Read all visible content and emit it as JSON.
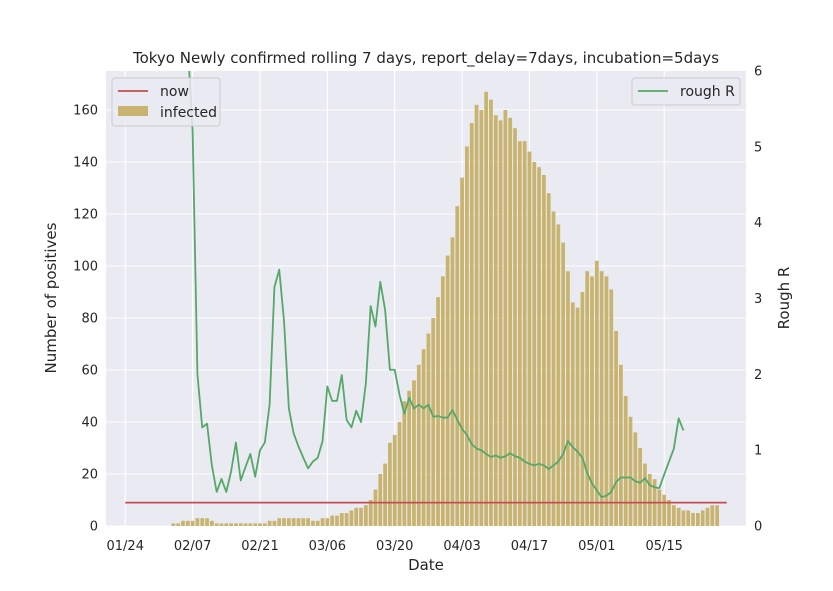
{
  "chart_data": {
    "type": "bar",
    "title": "Tokyo Newly confirmed rolling 7 days, report_delay=7days, incubation=5days",
    "xlabel": "Date",
    "ylabel": "Number of positives",
    "y2label": "Rough R",
    "ylim": [
      0,
      175
    ],
    "y2lim": [
      0,
      6
    ],
    "yticks": [
      0,
      20,
      40,
      60,
      80,
      100,
      120,
      140,
      160
    ],
    "y2ticks": [
      0,
      1,
      2,
      3,
      4,
      5,
      6
    ],
    "xrange_days": [
      -4,
      129
    ],
    "xticks": [
      {
        "day": 0,
        "label": "01/24"
      },
      {
        "day": 14,
        "label": "02/07"
      },
      {
        "day": 28,
        "label": "02/21"
      },
      {
        "day": 42,
        "label": "03/06"
      },
      {
        "day": 56,
        "label": "03/20"
      },
      {
        "day": 70,
        "label": "04/03"
      },
      {
        "day": 84,
        "label": "04/17"
      },
      {
        "day": 98,
        "label": "05/01"
      },
      {
        "day": 112,
        "label": "05/15"
      }
    ],
    "grid": true,
    "legend_left_position": "top-left",
    "legend_right_position": "top-right",
    "series": [
      {
        "name": "infected",
        "kind": "bar",
        "axis": "left",
        "color": "#c8b46e",
        "start_day": 0,
        "values": [
          0,
          0,
          0,
          0,
          0,
          0,
          0,
          0,
          0,
          0,
          1,
          1,
          2,
          2,
          2,
          3,
          3,
          3,
          2,
          1,
          1,
          1,
          1,
          1,
          1,
          1,
          1,
          1,
          1,
          1,
          2,
          2,
          3,
          3,
          3,
          3,
          3,
          3,
          3,
          2,
          2,
          3,
          3,
          4,
          4,
          5,
          5,
          6,
          7,
          7,
          8,
          10,
          14,
          20,
          24,
          32,
          35,
          40,
          48,
          52,
          56,
          62,
          68,
          74,
          80,
          88,
          96,
          104,
          111,
          123,
          134,
          146,
          155,
          162,
          160,
          167,
          164,
          158,
          156,
          160,
          157,
          153,
          148,
          148,
          144,
          140,
          138,
          135,
          128,
          121,
          116,
          109,
          98,
          86,
          84,
          90,
          98,
          96,
          102,
          98,
          96,
          91,
          75,
          62,
          50,
          42,
          36,
          30,
          24,
          20,
          18,
          14,
          12,
          10,
          8,
          7,
          6,
          6,
          5,
          5,
          6,
          7,
          8,
          8
        ]
      },
      {
        "name": "now",
        "kind": "hline",
        "axis": "left",
        "color": "#c44e52",
        "value": 9,
        "start_day": 0,
        "end_day": 125
      },
      {
        "name": "rough R",
        "kind": "line",
        "axis": "right",
        "color": "#55a868",
        "points": [
          [
            13.3,
            6
          ],
          [
            14,
            5.2
          ],
          [
            15,
            2
          ],
          [
            16,
            1.3
          ],
          [
            17,
            1.35
          ],
          [
            18,
            0.8
          ],
          [
            19,
            0.45
          ],
          [
            20,
            0.62
          ],
          [
            21,
            0.45
          ],
          [
            22,
            0.72
          ],
          [
            23,
            1.1
          ],
          [
            24,
            0.6
          ],
          [
            25,
            0.78
          ],
          [
            26,
            0.95
          ],
          [
            27,
            0.65
          ],
          [
            28,
            1
          ],
          [
            29,
            1.1
          ],
          [
            30,
            1.6
          ],
          [
            31,
            3.15
          ],
          [
            32,
            3.38
          ],
          [
            33,
            2.7
          ],
          [
            34,
            1.55
          ],
          [
            35,
            1.22
          ],
          [
            36,
            1.05
          ],
          [
            37,
            0.9
          ],
          [
            38,
            0.76
          ],
          [
            39,
            0.85
          ],
          [
            40,
            0.9
          ],
          [
            41,
            1.12
          ],
          [
            42,
            1.84
          ],
          [
            43,
            1.65
          ],
          [
            44,
            1.65
          ],
          [
            45,
            1.99
          ],
          [
            46,
            1.4
          ],
          [
            47,
            1.3
          ],
          [
            48,
            1.52
          ],
          [
            49,
            1.37
          ],
          [
            50,
            1.88
          ],
          [
            51,
            2.9
          ],
          [
            52,
            2.63
          ],
          [
            53,
            3.22
          ],
          [
            54,
            2.85
          ],
          [
            55,
            2.06
          ],
          [
            56,
            2.06
          ],
          [
            57,
            1.73
          ],
          [
            58,
            1.48
          ],
          [
            59,
            1.69
          ],
          [
            60,
            1.55
          ],
          [
            61,
            1.6
          ],
          [
            62,
            1.55
          ],
          [
            63,
            1.6
          ],
          [
            64,
            1.44
          ],
          [
            65,
            1.45
          ],
          [
            66,
            1.43
          ],
          [
            67,
            1.43
          ],
          [
            68,
            1.53
          ],
          [
            69,
            1.4
          ],
          [
            70,
            1.28
          ],
          [
            71,
            1.2
          ],
          [
            72,
            1.08
          ],
          [
            73,
            1.02
          ],
          [
            74,
            1.0
          ],
          [
            75,
            0.95
          ],
          [
            76,
            0.91
          ],
          [
            77,
            0.93
          ],
          [
            78,
            0.9
          ],
          [
            79,
            0.92
          ],
          [
            80,
            0.96
          ],
          [
            81,
            0.92
          ],
          [
            82,
            0.9
          ],
          [
            83,
            0.85
          ],
          [
            84,
            0.82
          ],
          [
            85,
            0.8
          ],
          [
            86,
            0.82
          ],
          [
            87,
            0.8
          ],
          [
            88,
            0.75
          ],
          [
            89,
            0.8
          ],
          [
            90,
            0.85
          ],
          [
            91,
            0.95
          ],
          [
            92,
            1.12
          ],
          [
            93,
            1.04
          ],
          [
            94,
            0.98
          ],
          [
            95,
            0.9
          ],
          [
            96,
            0.7
          ],
          [
            97,
            0.56
          ],
          [
            98,
            0.47
          ],
          [
            99,
            0.38
          ],
          [
            100,
            0.4
          ],
          [
            101,
            0.45
          ],
          [
            102,
            0.58
          ],
          [
            103,
            0.64
          ],
          [
            104,
            0.64
          ],
          [
            105,
            0.64
          ],
          [
            106,
            0.59
          ],
          [
            107,
            0.57
          ],
          [
            108,
            0.63
          ],
          [
            109,
            0.54
          ],
          [
            110,
            0.51
          ],
          [
            111,
            0.5
          ],
          [
            112,
            0.68
          ],
          [
            113,
            0.85
          ],
          [
            114,
            1.02
          ],
          [
            115,
            1.42
          ],
          [
            116,
            1.26
          ]
        ]
      }
    ]
  }
}
